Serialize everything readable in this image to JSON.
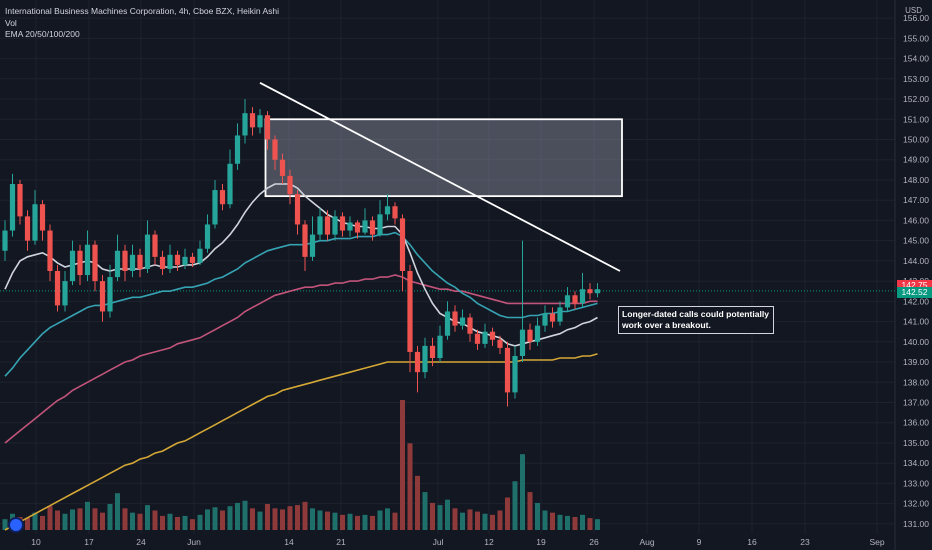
{
  "header": {
    "title": "International Business Machines Corporation, 4h, Cboe BZX, Heikin Ashi",
    "vol_label": "Vol",
    "ema_label": "EMA 20/50/100/200",
    "currency": "USD"
  },
  "annotation": {
    "line1": "Longer-dated calls could potentially",
    "line2": "work over a breakout."
  },
  "price_tags": [
    {
      "value": "142.75",
      "color": "#f23645"
    },
    {
      "value": "142.52",
      "color": "#089981"
    }
  ],
  "colors": {
    "background": "#131722",
    "up": "#26a69a",
    "down": "#ef5350",
    "vol_up": "#1f6f6a",
    "vol_down": "#8e3a3a",
    "ema20": "#d1d4dc",
    "ema50": "#36a3b3",
    "ema100": "#c2547a",
    "ema200": "#d4a736",
    "trendline": "#ffffff"
  },
  "chart_data": {
    "type": "candlestick",
    "title": "International Business Machines Corporation, 4h, Cboe BZX, Heikin Ashi",
    "ylim": [
      130.5,
      156.5
    ],
    "y_ticks": [
      "156.00",
      "155.00",
      "154.00",
      "153.00",
      "152.00",
      "151.00",
      "150.00",
      "149.00",
      "148.00",
      "147.00",
      "146.00",
      "145.00",
      "144.00",
      "143.00",
      "142.00",
      "141.00",
      "140.00",
      "139.00",
      "138.00",
      "137.00",
      "136.00",
      "135.00",
      "134.00",
      "133.00",
      "132.00",
      "131.00"
    ],
    "x_ticks": [
      "10",
      "17",
      "24",
      "Jun",
      "14",
      "21",
      "Jul",
      "12",
      "19",
      "26",
      "Aug",
      "9",
      "16",
      "23",
      "Sep"
    ],
    "candles": [
      {
        "o": 144.5,
        "c": 145.5,
        "h": 146.0,
        "l": 144.0
      },
      {
        "o": 145.5,
        "c": 147.8,
        "h": 148.3,
        "l": 145.2
      },
      {
        "o": 147.8,
        "c": 146.2,
        "h": 148.0,
        "l": 145.8
      },
      {
        "o": 146.2,
        "c": 145.0,
        "h": 146.5,
        "l": 144.5
      },
      {
        "o": 145.0,
        "c": 146.8,
        "h": 147.5,
        "l": 144.8
      },
      {
        "o": 146.8,
        "c": 145.5,
        "h": 147.0,
        "l": 145.0
      },
      {
        "o": 145.5,
        "c": 143.5,
        "h": 145.8,
        "l": 143.0
      },
      {
        "o": 143.5,
        "c": 141.8,
        "h": 143.8,
        "l": 141.5
      },
      {
        "o": 141.8,
        "c": 143.0,
        "h": 143.5,
        "l": 141.5
      },
      {
        "o": 143.0,
        "c": 144.5,
        "h": 145.0,
        "l": 142.8
      },
      {
        "o": 144.5,
        "c": 143.3,
        "h": 144.8,
        "l": 142.8
      },
      {
        "o": 143.3,
        "c": 144.8,
        "h": 145.5,
        "l": 143.0
      },
      {
        "o": 144.8,
        "c": 143.0,
        "h": 145.0,
        "l": 142.5
      },
      {
        "o": 143.0,
        "c": 141.5,
        "h": 143.3,
        "l": 141.0
      },
      {
        "o": 141.5,
        "c": 143.2,
        "h": 143.8,
        "l": 141.2
      },
      {
        "o": 143.2,
        "c": 144.5,
        "h": 145.3,
        "l": 143.0
      },
      {
        "o": 144.5,
        "c": 143.5,
        "h": 144.8,
        "l": 143.0
      },
      {
        "o": 143.5,
        "c": 144.3,
        "h": 144.8,
        "l": 143.2
      },
      {
        "o": 144.3,
        "c": 143.6,
        "h": 144.6,
        "l": 143.2
      },
      {
        "o": 143.6,
        "c": 145.3,
        "h": 146.0,
        "l": 143.4
      },
      {
        "o": 145.3,
        "c": 144.2,
        "h": 145.5,
        "l": 143.8
      },
      {
        "o": 144.2,
        "c": 143.6,
        "h": 144.5,
        "l": 143.3
      },
      {
        "o": 143.6,
        "c": 144.3,
        "h": 144.8,
        "l": 143.4
      },
      {
        "o": 144.3,
        "c": 143.8,
        "h": 144.5,
        "l": 143.5
      },
      {
        "o": 143.8,
        "c": 144.2,
        "h": 144.6,
        "l": 143.6
      },
      {
        "o": 144.2,
        "c": 143.9,
        "h": 144.4,
        "l": 143.7
      },
      {
        "o": 143.9,
        "c": 144.6,
        "h": 145.0,
        "l": 143.8
      },
      {
        "o": 144.6,
        "c": 145.8,
        "h": 146.3,
        "l": 144.4
      },
      {
        "o": 145.8,
        "c": 147.5,
        "h": 148.0,
        "l": 145.6
      },
      {
        "o": 147.5,
        "c": 146.8,
        "h": 147.8,
        "l": 146.5
      },
      {
        "o": 146.8,
        "c": 148.8,
        "h": 149.5,
        "l": 146.6
      },
      {
        "o": 148.8,
        "c": 150.2,
        "h": 150.8,
        "l": 148.5
      },
      {
        "o": 150.2,
        "c": 151.3,
        "h": 152.0,
        "l": 149.8
      },
      {
        "o": 151.3,
        "c": 150.6,
        "h": 151.6,
        "l": 150.2
      },
      {
        "o": 150.6,
        "c": 151.2,
        "h": 151.5,
        "l": 150.3
      },
      {
        "o": 151.2,
        "c": 150.0,
        "h": 151.4,
        "l": 149.5
      },
      {
        "o": 150.0,
        "c": 149.0,
        "h": 150.2,
        "l": 148.5
      },
      {
        "o": 149.0,
        "c": 148.2,
        "h": 149.3,
        "l": 147.8
      },
      {
        "o": 148.2,
        "c": 147.3,
        "h": 148.5,
        "l": 146.8
      },
      {
        "o": 147.3,
        "c": 145.8,
        "h": 147.5,
        "l": 145.3
      },
      {
        "o": 145.8,
        "c": 144.2,
        "h": 146.0,
        "l": 143.5
      },
      {
        "o": 144.2,
        "c": 145.3,
        "h": 146.2,
        "l": 144.0
      },
      {
        "o": 145.3,
        "c": 146.2,
        "h": 146.6,
        "l": 145.0
      },
      {
        "o": 146.2,
        "c": 145.3,
        "h": 146.5,
        "l": 145.0
      },
      {
        "o": 145.3,
        "c": 146.2,
        "h": 146.5,
        "l": 145.0
      },
      {
        "o": 146.2,
        "c": 145.5,
        "h": 146.4,
        "l": 145.2
      },
      {
        "o": 145.5,
        "c": 145.9,
        "h": 146.2,
        "l": 145.2
      },
      {
        "o": 145.9,
        "c": 145.4,
        "h": 146.0,
        "l": 145.1
      },
      {
        "o": 145.4,
        "c": 146.0,
        "h": 146.6,
        "l": 145.3
      },
      {
        "o": 146.0,
        "c": 145.3,
        "h": 146.2,
        "l": 145.0
      },
      {
        "o": 145.3,
        "c": 146.3,
        "h": 147.0,
        "l": 145.2
      },
      {
        "o": 146.3,
        "c": 146.7,
        "h": 147.3,
        "l": 146.0
      },
      {
        "o": 146.7,
        "c": 146.1,
        "h": 146.9,
        "l": 145.8
      },
      {
        "o": 146.1,
        "c": 143.5,
        "h": 146.3,
        "l": 142.5
      },
      {
        "o": 143.5,
        "c": 139.5,
        "h": 143.8,
        "l": 138.5
      },
      {
        "o": 139.5,
        "c": 138.5,
        "h": 139.8,
        "l": 137.5
      },
      {
        "o": 138.5,
        "c": 139.8,
        "h": 140.2,
        "l": 138.2
      },
      {
        "o": 139.8,
        "c": 139.2,
        "h": 140.2,
        "l": 138.8
      },
      {
        "o": 139.2,
        "c": 140.3,
        "h": 140.8,
        "l": 139.0
      },
      {
        "o": 140.3,
        "c": 141.5,
        "h": 142.0,
        "l": 140.1
      },
      {
        "o": 141.5,
        "c": 140.8,
        "h": 141.8,
        "l": 140.5
      },
      {
        "o": 140.8,
        "c": 141.2,
        "h": 141.6,
        "l": 140.6
      },
      {
        "o": 141.2,
        "c": 140.4,
        "h": 141.4,
        "l": 140.0
      },
      {
        "o": 140.4,
        "c": 139.9,
        "h": 140.6,
        "l": 139.6
      },
      {
        "o": 139.9,
        "c": 140.5,
        "h": 140.9,
        "l": 139.7
      },
      {
        "o": 140.5,
        "c": 140.1,
        "h": 140.7,
        "l": 139.8
      },
      {
        "o": 140.1,
        "c": 139.7,
        "h": 140.3,
        "l": 139.4
      },
      {
        "o": 139.7,
        "c": 137.5,
        "h": 140.0,
        "l": 136.8
      },
      {
        "o": 137.5,
        "c": 139.3,
        "h": 139.8,
        "l": 137.2
      },
      {
        "o": 139.3,
        "c": 140.6,
        "h": 145.0,
        "l": 139.0
      },
      {
        "o": 140.6,
        "c": 140.0,
        "h": 140.9,
        "l": 139.6
      },
      {
        "o": 140.0,
        "c": 140.8,
        "h": 141.2,
        "l": 139.8
      },
      {
        "o": 140.8,
        "c": 141.4,
        "h": 141.8,
        "l": 140.5
      },
      {
        "o": 141.4,
        "c": 141.0,
        "h": 141.7,
        "l": 140.7
      },
      {
        "o": 141.0,
        "c": 141.7,
        "h": 142.0,
        "l": 140.8
      },
      {
        "o": 141.7,
        "c": 142.3,
        "h": 142.7,
        "l": 141.5
      },
      {
        "o": 142.3,
        "c": 141.9,
        "h": 142.5,
        "l": 141.6
      },
      {
        "o": 141.9,
        "c": 142.6,
        "h": 143.4,
        "l": 141.7
      },
      {
        "o": 142.6,
        "c": 142.4,
        "h": 142.9,
        "l": 142.1
      },
      {
        "o": 142.4,
        "c": 142.6,
        "h": 142.9,
        "l": 142.2
      }
    ],
    "volume": [
      1.0,
      1.5,
      1.2,
      1.1,
      1.6,
      1.3,
      2.2,
      1.8,
      1.5,
      1.9,
      2.0,
      2.6,
      2.0,
      1.6,
      2.4,
      3.4,
      2.0,
      1.6,
      1.5,
      2.3,
      1.8,
      1.3,
      1.5,
      1.2,
      1.3,
      1.0,
      1.4,
      1.9,
      2.1,
      1.8,
      2.2,
      2.5,
      2.7,
      2.0,
      1.7,
      2.4,
      2.0,
      1.9,
      2.2,
      2.3,
      2.6,
      2.0,
      1.8,
      1.7,
      1.6,
      1.4,
      1.5,
      1.3,
      1.4,
      1.3,
      1.8,
      2.0,
      1.6,
      12.0,
      8.0,
      5.0,
      3.5,
      2.5,
      2.3,
      2.8,
      2.0,
      1.6,
      1.9,
      1.7,
      1.5,
      1.4,
      1.8,
      3.0,
      4.5,
      7.0,
      3.5,
      2.5,
      1.8,
      1.6,
      1.4,
      1.3,
      1.2,
      1.4,
      1.1,
      1.0
    ],
    "ema20": [
      142.6,
      143.4,
      144.0,
      144.2,
      144.3,
      144.4,
      144.2,
      143.9,
      143.7,
      143.8,
      143.9,
      144.0,
      143.9,
      143.6,
      143.5,
      143.6,
      143.6,
      143.6,
      143.6,
      143.7,
      143.8,
      143.7,
      143.7,
      143.7,
      143.8,
      143.8,
      143.9,
      144.2,
      144.6,
      144.9,
      145.3,
      145.8,
      146.4,
      146.9,
      147.3,
      147.6,
      147.8,
      147.8,
      147.8,
      147.6,
      147.2,
      146.9,
      146.6,
      146.3,
      146.1,
      145.9,
      145.8,
      145.7,
      145.7,
      145.6,
      145.6,
      145.7,
      145.7,
      145.3,
      144.4,
      143.4,
      142.6,
      141.9,
      141.4,
      141.2,
      141.0,
      140.9,
      140.7,
      140.5,
      140.4,
      140.3,
      140.2,
      139.9,
      139.8,
      139.9,
      140.0,
      140.1,
      140.2,
      140.3,
      140.4,
      140.6,
      140.7,
      140.9,
      141.0,
      141.2
    ],
    "ema50": [
      138.3,
      138.7,
      139.2,
      139.6,
      140.0,
      140.4,
      140.7,
      140.9,
      141.1,
      141.3,
      141.5,
      141.7,
      141.8,
      141.8,
      141.9,
      142.0,
      142.1,
      142.2,
      142.2,
      142.3,
      142.4,
      142.5,
      142.5,
      142.6,
      142.7,
      142.7,
      142.8,
      142.9,
      143.1,
      143.2,
      143.4,
      143.6,
      143.9,
      144.1,
      144.3,
      144.5,
      144.6,
      144.7,
      144.8,
      144.8,
      144.8,
      144.9,
      145.0,
      145.0,
      145.1,
      145.1,
      145.1,
      145.2,
      145.2,
      145.2,
      145.3,
      145.3,
      145.4,
      145.2,
      144.8,
      144.3,
      143.9,
      143.5,
      143.2,
      142.9,
      142.7,
      142.4,
      142.2,
      141.9,
      141.7,
      141.5,
      141.3,
      141.2,
      141.2,
      141.2,
      141.3,
      141.3,
      141.4,
      141.4,
      141.5,
      141.5,
      141.6,
      141.7,
      141.8,
      141.9
    ],
    "ema100": [
      135.0,
      135.3,
      135.6,
      135.9,
      136.2,
      136.5,
      136.8,
      137.1,
      137.3,
      137.6,
      137.8,
      138.0,
      138.2,
      138.4,
      138.6,
      138.8,
      139.0,
      139.1,
      139.3,
      139.4,
      139.5,
      139.6,
      139.7,
      139.9,
      140.0,
      140.1,
      140.2,
      140.4,
      140.6,
      140.8,
      141.0,
      141.2,
      141.5,
      141.7,
      141.9,
      142.1,
      142.3,
      142.4,
      142.5,
      142.6,
      142.7,
      142.7,
      142.8,
      142.8,
      142.9,
      142.9,
      143.0,
      143.0,
      143.1,
      143.1,
      143.2,
      143.2,
      143.3,
      143.2,
      143.0,
      142.9,
      142.8,
      142.7,
      142.6,
      142.6,
      142.5,
      142.5,
      142.4,
      142.3,
      142.2,
      142.1,
      142.0,
      141.9,
      141.9,
      141.9,
      141.9,
      141.9,
      141.9,
      141.9,
      141.9,
      141.9,
      141.9,
      141.9,
      142.0,
      142.0
    ],
    "ema200": [
      130.7,
      130.9,
      131.1,
      131.3,
      131.5,
      131.7,
      131.9,
      132.1,
      132.3,
      132.5,
      132.7,
      132.9,
      133.1,
      133.3,
      133.5,
      133.7,
      133.9,
      134.0,
      134.2,
      134.3,
      134.5,
      134.6,
      134.8,
      135.0,
      135.1,
      135.3,
      135.5,
      135.7,
      135.9,
      136.1,
      136.3,
      136.5,
      136.7,
      136.9,
      137.1,
      137.3,
      137.4,
      137.6,
      137.7,
      137.8,
      137.9,
      138.0,
      138.1,
      138.2,
      138.3,
      138.4,
      138.5,
      138.6,
      138.7,
      138.8,
      138.9,
      139.0,
      139.0,
      139.0,
      139.0,
      139.0,
      139.0,
      139.0,
      139.0,
      139.0,
      139.0,
      139.0,
      139.0,
      139.0,
      139.0,
      139.0,
      139.0,
      139.0,
      139.0,
      139.1,
      139.1,
      139.1,
      139.1,
      139.1,
      139.2,
      139.2,
      139.2,
      139.3,
      139.3,
      139.4
    ],
    "trendline": {
      "start_index": 34,
      "start_price": 152.8,
      "end_index": 82,
      "end_price": 143.5
    },
    "zone": {
      "start_index": 35,
      "end_index": 82,
      "top": 151.0,
      "bottom": 147.2
    },
    "last_price": 142.52
  }
}
